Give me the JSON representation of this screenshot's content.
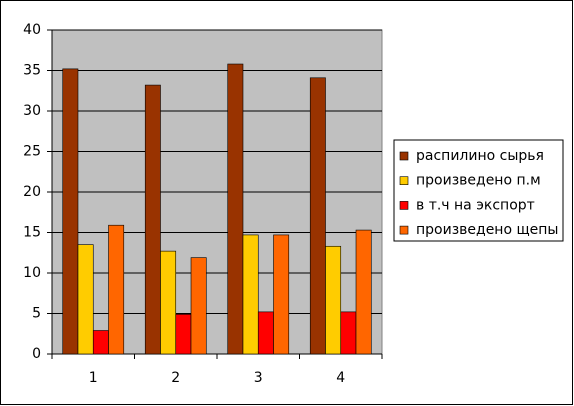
{
  "chart_data": {
    "type": "bar",
    "categories": [
      "1",
      "2",
      "3",
      "4"
    ],
    "series": [
      {
        "name": "распилино сырья",
        "color": "#993300",
        "values": [
          35.2,
          33.2,
          35.8,
          34.1
        ]
      },
      {
        "name": "произведено п.м",
        "color": "#ffcc00",
        "values": [
          13.5,
          12.7,
          14.7,
          13.3
        ]
      },
      {
        "name": "в т.ч на экспорт",
        "color": "#ff0000",
        "values": [
          2.9,
          4.9,
          5.2,
          5.2
        ]
      },
      {
        "name": "произведено щепы",
        "color": "#ff6600",
        "values": [
          15.9,
          11.9,
          14.7,
          15.3
        ]
      }
    ],
    "ylim": [
      0,
      40
    ],
    "yticks": [
      0,
      5,
      10,
      15,
      20,
      25,
      30,
      35,
      40
    ],
    "grid": true,
    "legend": "right"
  }
}
